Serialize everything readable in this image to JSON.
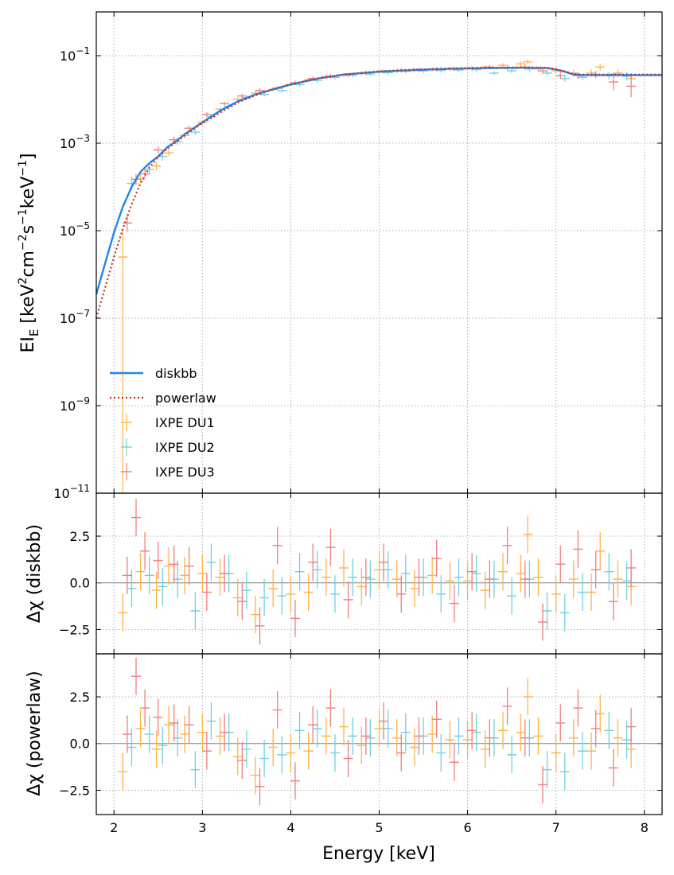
{
  "chart_data": [
    {
      "type": "line",
      "panel": "spectrum",
      "ylabel": "EI_E [keV^2 cm^-2 s^-1 keV^-1]",
      "yscale": "log",
      "xlim": [
        1.8,
        8.2
      ],
      "ylim_log10": [
        -11,
        0
      ],
      "y_ticks": [
        "10^-1",
        "10^-3",
        "10^-5",
        "10^-7",
        "10^-9",
        "10^-11"
      ],
      "legend": {
        "position": "lower-left",
        "entries": [
          {
            "label": "diskbb",
            "color": "#1e88e5",
            "style": "solid"
          },
          {
            "label": "powerlaw",
            "color": "#d62728",
            "style": "dotted"
          },
          {
            "label": "IXPE DU1",
            "color": "#ffb347",
            "style": "marker"
          },
          {
            "label": "IXPE DU2",
            "color": "#6fd1e0",
            "style": "marker"
          },
          {
            "label": "IXPE DU3",
            "color": "#ee7f7f",
            "style": "marker"
          }
        ]
      },
      "model_x": [
        1.8,
        1.9,
        2.0,
        2.1,
        2.2,
        2.3,
        2.4,
        2.5,
        2.6,
        2.7,
        2.8,
        3.0,
        3.2,
        3.4,
        3.6,
        3.8,
        4.0,
        4.3,
        4.6,
        5.0,
        5.4,
        5.8,
        6.2,
        6.6,
        6.9,
        7.0,
        7.1,
        7.2,
        7.3,
        7.6,
        8.0,
        8.2
      ],
      "diskbb_y": [
        3.5e-07,
        1.8e-06,
        9e-06,
        3.5e-05,
        0.0001,
        0.00022,
        0.00035,
        0.0005,
        0.0008,
        0.0011,
        0.0016,
        0.003,
        0.0055,
        0.009,
        0.013,
        0.017,
        0.022,
        0.03,
        0.037,
        0.043,
        0.047,
        0.05,
        0.052,
        0.053,
        0.052,
        0.048,
        0.043,
        0.037,
        0.036,
        0.036,
        0.036,
        0.036
      ],
      "powerlaw_y": [
        1e-07,
        5e-07,
        2.5e-06,
        1.1e-05,
        4e-05,
        0.00012,
        0.00028,
        0.00048,
        0.00075,
        0.00105,
        0.0015,
        0.0029,
        0.005,
        0.0085,
        0.0125,
        0.017,
        0.022,
        0.03,
        0.037,
        0.044,
        0.048,
        0.051,
        0.053,
        0.054,
        0.053,
        0.049,
        0.044,
        0.038,
        0.037,
        0.037,
        0.037,
        0.037
      ],
      "series": [
        {
          "name": "IXPE DU1",
          "color": "#ffb347",
          "x": [
            2.1,
            2.3,
            2.48,
            2.62,
            2.8,
            3.0,
            3.2,
            3.4,
            3.6,
            3.8,
            4.0,
            4.2,
            4.4,
            4.6,
            4.8,
            5.0,
            5.2,
            5.4,
            5.6,
            5.8,
            6.0,
            6.2,
            6.4,
            6.6,
            6.68,
            6.8,
            7.0,
            7.2,
            7.4,
            7.5,
            7.7,
            7.85
          ],
          "y": [
            2.5e-06,
            0.00015,
            0.0003,
            0.0006,
            0.0015,
            0.003,
            0.006,
            0.01,
            0.014,
            0.017,
            0.022,
            0.028,
            0.033,
            0.036,
            0.039,
            0.042,
            0.045,
            0.046,
            0.048,
            0.05,
            0.052,
            0.055,
            0.06,
            0.065,
            0.072,
            0.05,
            0.045,
            0.04,
            0.04,
            0.055,
            0.04,
            0.03
          ],
          "yerr": [
            0.6,
            0.1,
            0.1,
            0.08,
            0.07,
            0.06,
            0.05,
            0.05,
            0.05,
            0.05,
            0.05,
            0.05,
            0.05,
            0.05,
            0.05,
            0.05,
            0.05,
            0.05,
            0.05,
            0.05,
            0.05,
            0.05,
            0.05,
            0.06,
            0.06,
            0.06,
            0.07,
            0.08,
            0.08,
            0.08,
            0.1,
            0.12
          ]
        },
        {
          "name": "IXPE DU2",
          "color": "#6fd1e0",
          "x": [
            2.2,
            2.4,
            2.55,
            2.72,
            2.92,
            3.1,
            3.3,
            3.5,
            3.7,
            3.9,
            4.1,
            4.3,
            4.5,
            4.7,
            4.9,
            5.1,
            5.3,
            5.5,
            5.7,
            5.9,
            6.1,
            6.3,
            6.5,
            6.7,
            6.9,
            7.1,
            7.3,
            7.6,
            7.8
          ],
          "y": [
            0.00012,
            0.00025,
            0.0005,
            0.0011,
            0.0018,
            0.004,
            0.007,
            0.011,
            0.013,
            0.016,
            0.022,
            0.027,
            0.032,
            0.036,
            0.038,
            0.041,
            0.044,
            0.045,
            0.046,
            0.047,
            0.048,
            0.04,
            0.045,
            0.05,
            0.04,
            0.03,
            0.032,
            0.035,
            0.034
          ],
          "yerr": [
            0.15,
            0.12,
            0.1,
            0.08,
            0.07,
            0.06,
            0.05,
            0.05,
            0.05,
            0.05,
            0.05,
            0.05,
            0.05,
            0.05,
            0.05,
            0.05,
            0.05,
            0.05,
            0.05,
            0.05,
            0.05,
            0.05,
            0.05,
            0.06,
            0.06,
            0.07,
            0.07,
            0.09,
            0.1
          ]
        },
        {
          "name": "IXPE DU3",
          "color": "#ee7f7f",
          "x": [
            2.15,
            2.25,
            2.35,
            2.5,
            2.68,
            2.85,
            3.05,
            3.25,
            3.45,
            3.65,
            3.85,
            4.05,
            4.25,
            4.45,
            4.65,
            4.85,
            5.05,
            5.25,
            5.45,
            5.65,
            5.85,
            6.05,
            6.25,
            6.45,
            6.65,
            6.85,
            7.05,
            7.25,
            7.45,
            7.65,
            7.85
          ],
          "y": [
            1.5e-05,
            0.00015,
            0.0002,
            0.0007,
            0.0012,
            0.0022,
            0.0045,
            0.008,
            0.012,
            0.016,
            0.018,
            0.024,
            0.03,
            0.034,
            0.036,
            0.04,
            0.043,
            0.046,
            0.047,
            0.049,
            0.05,
            0.051,
            0.055,
            0.053,
            0.055,
            0.045,
            0.035,
            0.035,
            0.037,
            0.025,
            0.02
          ],
          "yerr": [
            0.2,
            0.12,
            0.1,
            0.08,
            0.07,
            0.06,
            0.05,
            0.05,
            0.05,
            0.05,
            0.05,
            0.05,
            0.05,
            0.05,
            0.05,
            0.05,
            0.05,
            0.05,
            0.05,
            0.05,
            0.05,
            0.05,
            0.05,
            0.05,
            0.06,
            0.06,
            0.08,
            0.08,
            0.08,
            0.2,
            0.25
          ]
        }
      ]
    },
    {
      "type": "scatter",
      "panel": "residuals-diskbb",
      "ylabel": "Δχ (diskbb)",
      "xlim": [
        1.8,
        8.2
      ],
      "ylim": [
        -3.8,
        4.8
      ],
      "y_ticks": [
        "2.5",
        "0.0",
        "−2.5"
      ],
      "series": [
        {
          "name": "IXPE DU1",
          "color": "#ffb347",
          "x": [
            2.1,
            2.3,
            2.48,
            2.62,
            2.8,
            3.0,
            3.2,
            3.4,
            3.6,
            3.8,
            4.0,
            4.2,
            4.4,
            4.6,
            4.8,
            5.0,
            5.2,
            5.4,
            5.6,
            5.8,
            6.0,
            6.2,
            6.4,
            6.6,
            6.68,
            6.8,
            7.0,
            7.2,
            7.4,
            7.5,
            7.7,
            7.85
          ],
          "y": [
            -1.6,
            0.6,
            -0.4,
            0.9,
            0.4,
            0.5,
            0.3,
            -0.8,
            -1.7,
            -0.3,
            -0.6,
            -0.5,
            0.3,
            0.8,
            -0.2,
            0.7,
            0.2,
            -0.3,
            0.4,
            0.1,
            0.1,
            -0.4,
            0.6,
            0.5,
            2.6,
            0.3,
            -0.6,
            0.2,
            -0.5,
            1.7,
            0.2,
            -0.2
          ],
          "err": [
            1.0,
            1.0,
            1.0,
            1.0,
            1.0,
            1.0,
            1.0,
            1.0,
            1.0,
            1.0,
            1.0,
            1.0,
            1.0,
            1.0,
            1.0,
            1.0,
            1.0,
            1.0,
            1.0,
            1.0,
            1.0,
            1.0,
            1.0,
            1.0,
            1.0,
            1.0,
            1.0,
            1.0,
            1.0,
            1.0,
            1.0,
            1.0
          ]
        },
        {
          "name": "IXPE DU2",
          "color": "#6fd1e0",
          "x": [
            2.2,
            2.4,
            2.55,
            2.72,
            2.92,
            3.1,
            3.3,
            3.5,
            3.7,
            3.9,
            4.1,
            4.3,
            4.5,
            4.7,
            4.9,
            5.1,
            5.3,
            5.5,
            5.7,
            5.9,
            6.1,
            6.3,
            6.5,
            6.7,
            6.9,
            7.1,
            7.3,
            7.6,
            7.8
          ],
          "y": [
            -0.3,
            0.4,
            -0.2,
            0.2,
            -1.5,
            1.1,
            0.5,
            -0.4,
            -0.8,
            -0.7,
            0.6,
            0.7,
            -0.6,
            0.3,
            0.2,
            0.7,
            0.5,
            0.3,
            -0.6,
            0.3,
            0.5,
            0.2,
            -0.7,
            0.2,
            -1.5,
            -1.6,
            -0.5,
            0.6,
            0.1
          ],
          "err": [
            1.0,
            1.0,
            1.0,
            1.0,
            1.0,
            1.0,
            1.0,
            1.0,
            1.0,
            1.0,
            1.0,
            1.0,
            1.0,
            1.0,
            1.0,
            1.0,
            1.0,
            1.0,
            1.0,
            1.0,
            1.0,
            1.0,
            1.0,
            1.0,
            1.0,
            1.0,
            1.0,
            1.0,
            1.0
          ]
        },
        {
          "name": "IXPE DU3",
          "color": "#ee7f7f",
          "x": [
            2.15,
            2.25,
            2.35,
            2.5,
            2.68,
            2.85,
            3.05,
            3.25,
            3.45,
            3.65,
            3.85,
            4.05,
            4.25,
            4.45,
            4.65,
            4.85,
            5.05,
            5.25,
            5.45,
            5.65,
            5.85,
            6.05,
            6.25,
            6.45,
            6.65,
            6.85,
            7.05,
            7.25,
            7.45,
            7.65,
            7.85
          ],
          "y": [
            0.4,
            3.5,
            1.7,
            1.2,
            1.0,
            0.9,
            -0.5,
            0.5,
            -1.0,
            -2.3,
            2.0,
            -1.9,
            1.1,
            1.9,
            -0.9,
            0.3,
            1.1,
            -0.6,
            0.3,
            1.3,
            -1.1,
            0.6,
            0.2,
            2.0,
            0.2,
            -2.1,
            1.0,
            1.8,
            0.7,
            -1.0,
            0.8
          ],
          "err": [
            1.0,
            1.0,
            1.0,
            1.0,
            1.0,
            1.0,
            1.0,
            1.0,
            1.0,
            1.0,
            1.0,
            1.0,
            1.0,
            1.0,
            1.0,
            1.0,
            1.0,
            1.0,
            1.0,
            1.0,
            1.0,
            1.0,
            1.0,
            1.0,
            1.0,
            1.0,
            1.0,
            1.0,
            1.0,
            1.0,
            1.0
          ]
        }
      ]
    },
    {
      "type": "scatter",
      "panel": "residuals-powerlaw",
      "ylabel": "Δχ (powerlaw)",
      "xlabel": "Energy [keV]",
      "xlim": [
        1.8,
        8.2
      ],
      "ylim": [
        -3.8,
        4.8
      ],
      "x_ticks": [
        "2",
        "3",
        "4",
        "5",
        "6",
        "7",
        "8"
      ],
      "y_ticks": [
        "2.5",
        "0.0",
        "−2.5"
      ],
      "series": [
        {
          "name": "IXPE DU1",
          "color": "#ffb347",
          "x": [
            2.1,
            2.3,
            2.48,
            2.62,
            2.8,
            3.0,
            3.2,
            3.4,
            3.6,
            3.8,
            4.0,
            4.2,
            4.4,
            4.6,
            4.8,
            5.0,
            5.2,
            5.4,
            5.6,
            5.8,
            6.0,
            6.2,
            6.4,
            6.6,
            6.68,
            6.8,
            7.0,
            7.2,
            7.4,
            7.5,
            7.7,
            7.85
          ],
          "y": [
            -1.5,
            0.8,
            -0.3,
            1.0,
            0.5,
            0.6,
            0.4,
            -0.7,
            -1.7,
            -0.2,
            -0.5,
            -0.4,
            0.4,
            0.9,
            -0.1,
            0.8,
            0.3,
            -0.2,
            0.5,
            0.2,
            0.2,
            -0.3,
            0.7,
            0.6,
            2.5,
            0.4,
            -0.5,
            0.3,
            -0.4,
            1.6,
            0.3,
            -0.3
          ],
          "err": [
            1.0,
            1.0,
            1.0,
            1.0,
            1.0,
            1.0,
            1.0,
            1.0,
            1.0,
            1.0,
            1.0,
            1.0,
            1.0,
            1.0,
            1.0,
            1.0,
            1.0,
            1.0,
            1.0,
            1.0,
            1.0,
            1.0,
            1.0,
            1.0,
            1.0,
            1.0,
            1.0,
            1.0,
            1.0,
            1.0,
            1.0,
            1.0
          ]
        },
        {
          "name": "IXPE DU2",
          "color": "#6fd1e0",
          "x": [
            2.2,
            2.4,
            2.55,
            2.72,
            2.92,
            3.1,
            3.3,
            3.5,
            3.7,
            3.9,
            4.1,
            4.3,
            4.5,
            4.7,
            4.9,
            5.1,
            5.3,
            5.5,
            5.7,
            5.9,
            6.1,
            6.3,
            6.5,
            6.7,
            6.9,
            7.1,
            7.3,
            7.6,
            7.8
          ],
          "y": [
            -0.2,
            0.5,
            -0.1,
            0.3,
            -1.4,
            1.2,
            0.6,
            -0.3,
            -0.8,
            -0.6,
            0.7,
            0.8,
            -0.5,
            0.4,
            0.3,
            0.8,
            0.6,
            0.4,
            -0.5,
            0.4,
            0.6,
            0.3,
            -0.6,
            0.3,
            -1.4,
            -1.5,
            -0.4,
            0.7,
            0.2
          ],
          "err": [
            1.0,
            1.0,
            1.0,
            1.0,
            1.0,
            1.0,
            1.0,
            1.0,
            1.0,
            1.0,
            1.0,
            1.0,
            1.0,
            1.0,
            1.0,
            1.0,
            1.0,
            1.0,
            1.0,
            1.0,
            1.0,
            1.0,
            1.0,
            1.0,
            1.0,
            1.0,
            1.0,
            1.0,
            1.0
          ]
        },
        {
          "name": "IXPE DU3",
          "color": "#ee7f7f",
          "x": [
            2.15,
            2.25,
            2.35,
            2.5,
            2.68,
            2.85,
            3.05,
            3.25,
            3.45,
            3.65,
            3.85,
            4.05,
            4.25,
            4.45,
            4.65,
            4.85,
            5.05,
            5.25,
            5.45,
            5.65,
            5.85,
            6.05,
            6.25,
            6.45,
            6.65,
            6.85,
            7.05,
            7.25,
            7.45,
            7.65,
            7.85
          ],
          "y": [
            0.5,
            3.6,
            1.9,
            1.4,
            1.1,
            1.0,
            -0.4,
            0.6,
            -0.9,
            -2.3,
            1.8,
            -2.0,
            1.0,
            1.9,
            -0.8,
            0.4,
            1.2,
            -0.5,
            0.4,
            1.3,
            -1.0,
            0.7,
            0.3,
            2.0,
            0.3,
            -2.2,
            1.1,
            1.9,
            0.8,
            -1.3,
            0.9
          ],
          "err": [
            1.0,
            1.0,
            1.0,
            1.0,
            1.0,
            1.0,
            1.0,
            1.0,
            1.0,
            1.0,
            1.0,
            1.0,
            1.0,
            1.0,
            1.0,
            1.0,
            1.0,
            1.0,
            1.0,
            1.0,
            1.0,
            1.0,
            1.0,
            1.0,
            1.0,
            1.0,
            1.0,
            1.0,
            1.0,
            1.0,
            1.0
          ]
        }
      ]
    }
  ]
}
